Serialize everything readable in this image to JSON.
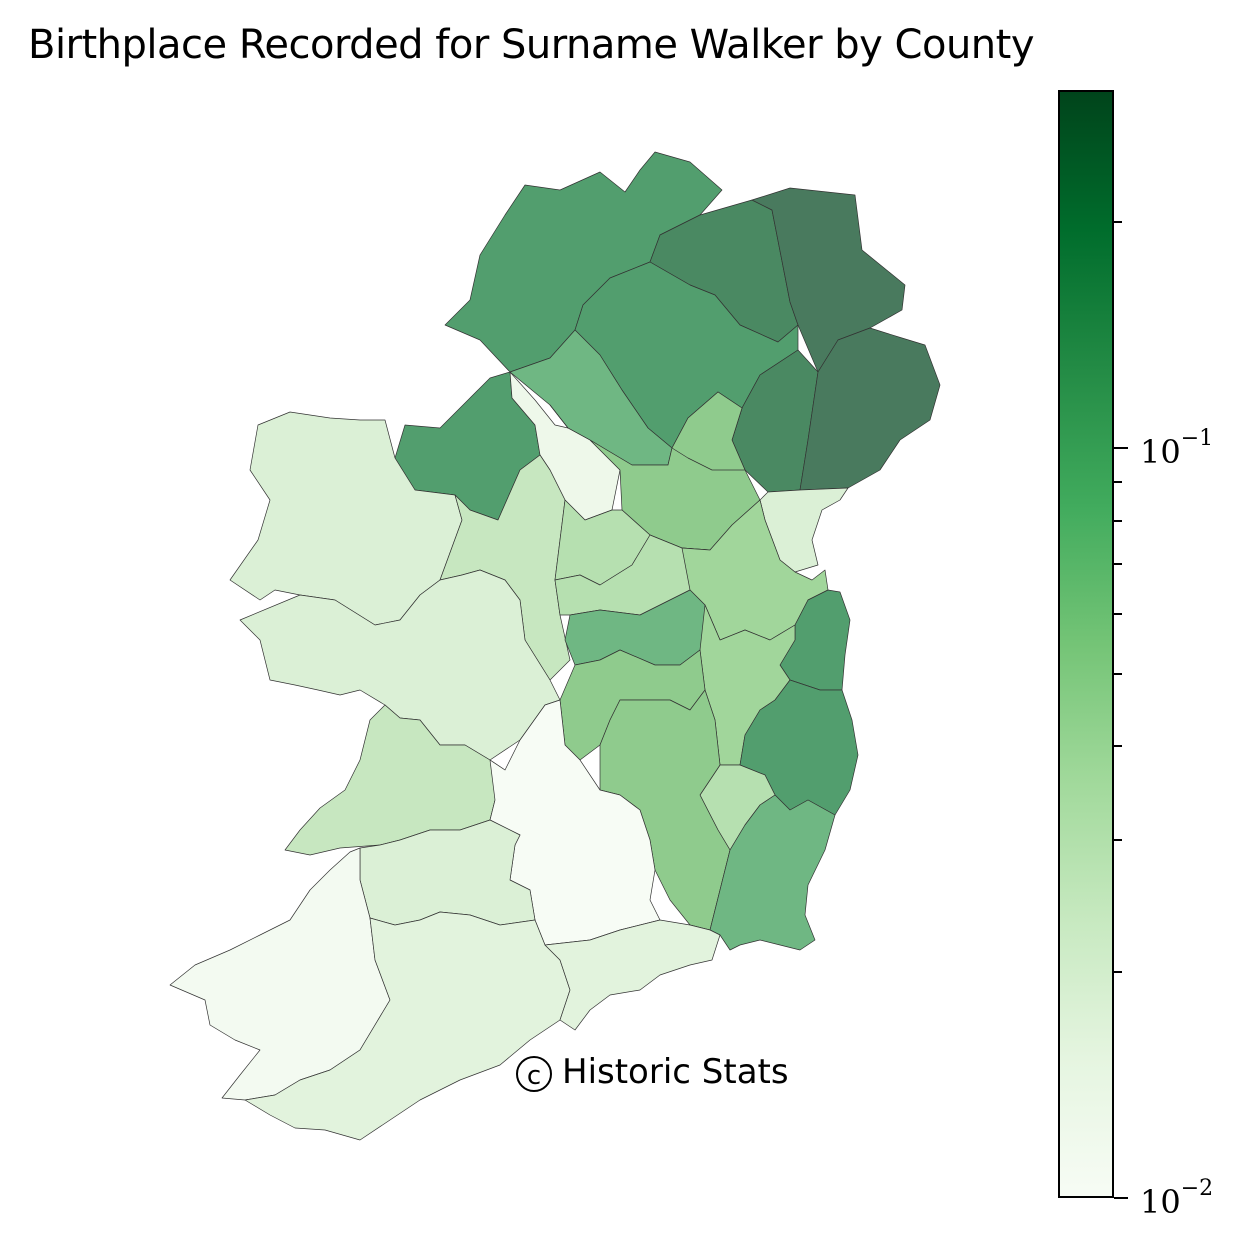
{
  "title": "Birthplace Recorded for Surname Walker by County",
  "copyright": {
    "symbol": "c",
    "text": "Historic Stats"
  },
  "colorbar": {
    "scale": "log",
    "range": [
      0.01,
      0.3
    ],
    "gradient": [
      "#f7fcf5",
      "#e5f5e0",
      "#c7e9c0",
      "#a1d99b",
      "#74c476",
      "#41ab5d",
      "#238b45",
      "#006d2c",
      "#00441b"
    ],
    "major_ticks": [
      {
        "value": 0.01,
        "base": "10",
        "exp": "−2"
      },
      {
        "value": 0.1,
        "base": "10",
        "exp": "−1"
      }
    ],
    "minor_ticks": [
      0.02,
      0.03,
      0.04,
      0.05,
      0.06,
      0.07,
      0.08,
      0.09,
      0.2
    ]
  },
  "counties": [
    {
      "name": "Donegal",
      "color": "#529e6e"
    },
    {
      "name": "Derry",
      "color": "#4a8962"
    },
    {
      "name": "Antrim",
      "color": "#497a5e"
    },
    {
      "name": "Tyrone",
      "color": "#529e6e"
    },
    {
      "name": "Fermanagh",
      "color": "#6fb783"
    },
    {
      "name": "Armagh",
      "color": "#4a8962"
    },
    {
      "name": "Down",
      "color": "#497a5e"
    },
    {
      "name": "Sligo",
      "color": "#529e6e"
    },
    {
      "name": "Leitrim",
      "color": "#eef8ea"
    },
    {
      "name": "Cavan",
      "color": "#8fcb8d"
    },
    {
      "name": "Monaghan",
      "color": "#8fcb8d"
    },
    {
      "name": "Louth",
      "color": "#dbf0d6"
    },
    {
      "name": "Mayo",
      "color": "#dbf0d6"
    },
    {
      "name": "Roscommon",
      "color": "#c7e7c0"
    },
    {
      "name": "Longford",
      "color": "#b6e0b0"
    },
    {
      "name": "Westmeath",
      "color": "#b6e0b0"
    },
    {
      "name": "Meath",
      "color": "#a1d69b"
    },
    {
      "name": "Dublin",
      "color": "#529e6e"
    },
    {
      "name": "Galway",
      "color": "#dbf0d6"
    },
    {
      "name": "Offaly",
      "color": "#6fb783"
    },
    {
      "name": "Kildare",
      "color": "#a1d69b"
    },
    {
      "name": "Wicklow",
      "color": "#529e6e"
    },
    {
      "name": "Laois",
      "color": "#8fcb8d"
    },
    {
      "name": "Carlow",
      "color": "#b6e0b0"
    },
    {
      "name": "Kilkenny",
      "color": "#8fcb8d"
    },
    {
      "name": "Wexford",
      "color": "#6fb783"
    },
    {
      "name": "Clare",
      "color": "#c7e7c0"
    },
    {
      "name": "Tipperary",
      "color": "#f7fcf5"
    },
    {
      "name": "Limerick",
      "color": "#dbf0d6"
    },
    {
      "name": "Kerry",
      "color": "#f3faf1"
    },
    {
      "name": "Cork",
      "color": "#e2f3dd"
    },
    {
      "name": "Waterford",
      "color": "#e2f3dd"
    }
  ]
}
